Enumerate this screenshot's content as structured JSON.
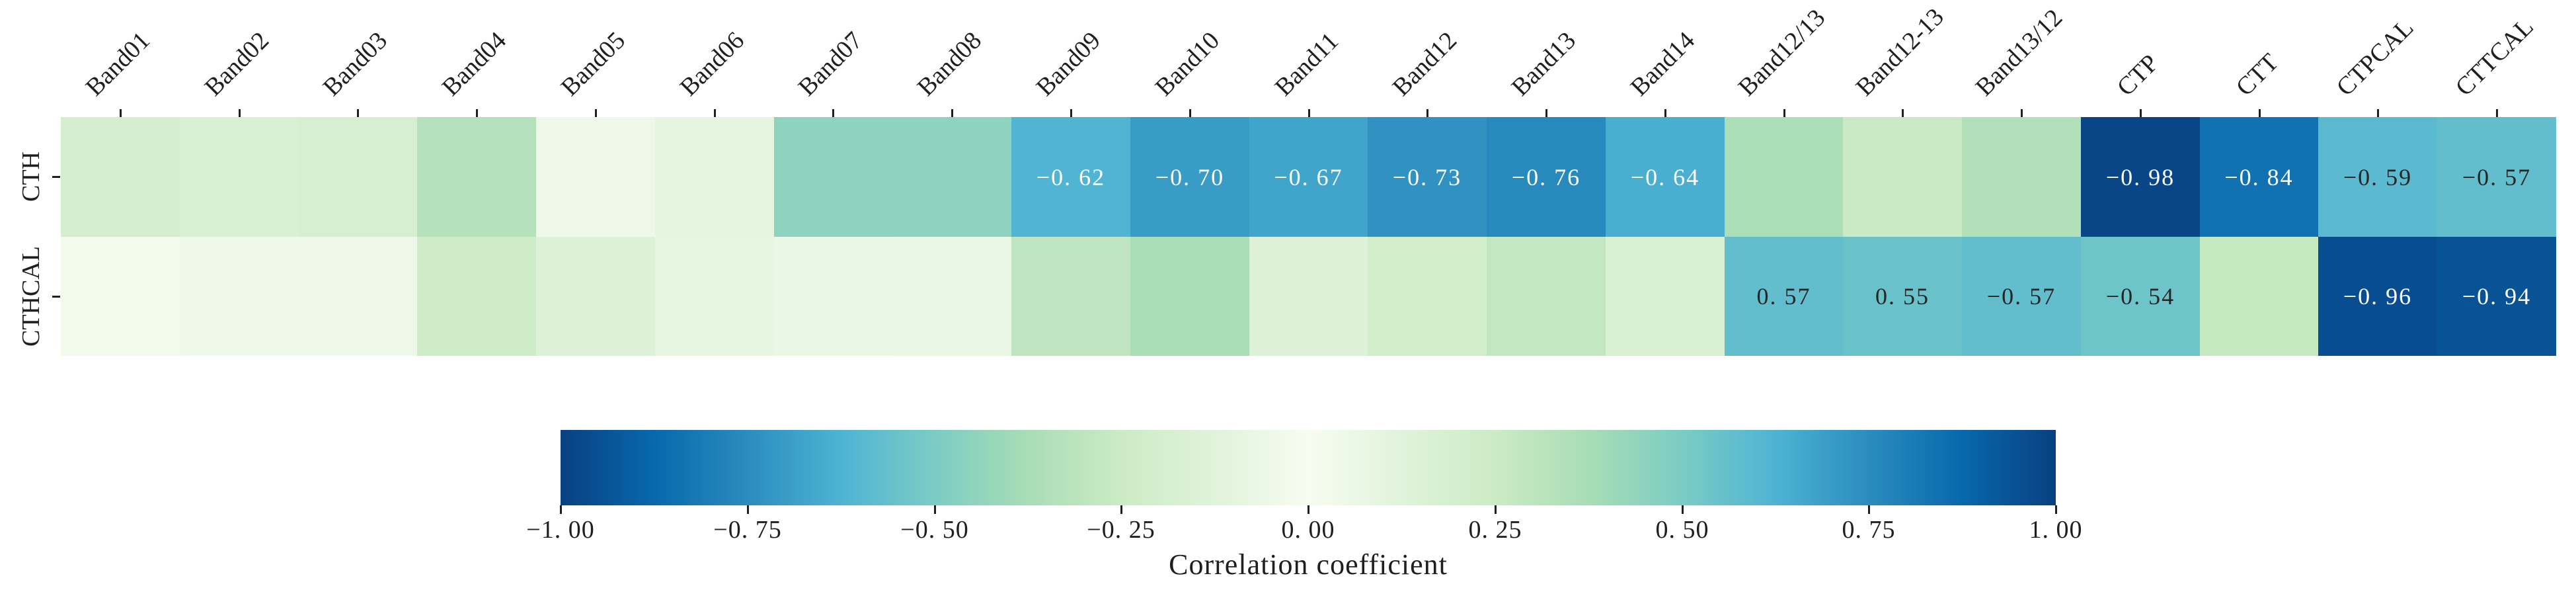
{
  "figure": {
    "background": "#ffffff",
    "text_color": "#1f1f1f"
  },
  "chart_data": {
    "type": "heatmap",
    "rows": [
      "CTH",
      "CTHCAL"
    ],
    "columns": [
      "Band01",
      "Band02",
      "Band03",
      "Band04",
      "Band05",
      "Band06",
      "Band07",
      "Band08",
      "Band09",
      "Band10",
      "Band11",
      "Band12",
      "Band13",
      "Band14",
      "Band12/13",
      "Band12-13",
      "Band13/12",
      "CTP",
      "CTT",
      "CTPCAL",
      "CTTCAL"
    ],
    "series": [
      {
        "name": "CTH",
        "values": [
          0.2,
          0.17,
          0.19,
          0.33,
          0.05,
          0.1,
          0.45,
          0.45,
          -0.62,
          -0.7,
          -0.67,
          -0.73,
          -0.76,
          -0.64,
          0.36,
          0.26,
          0.34,
          -0.98,
          -0.84,
          -0.59,
          -0.57
        ]
      },
      {
        "name": "CTHCAL",
        "values": [
          0.03,
          0.05,
          0.05,
          0.23,
          0.15,
          0.09,
          0.07,
          0.08,
          0.3,
          0.37,
          0.15,
          0.22,
          0.28,
          0.17,
          0.57,
          0.55,
          -0.57,
          -0.54,
          0.27,
          -0.96,
          -0.94
        ]
      }
    ],
    "unannotated_values_estimated_from_color": true,
    "annotations": [
      [
        "",
        "",
        "",
        "",
        "",
        "",
        "",
        "",
        "−0. 62",
        "−0. 70",
        "−0. 67",
        "−0. 73",
        "−0. 76",
        "−0. 64",
        "",
        "",
        "",
        "−0. 98",
        "−0. 84",
        "−0. 59",
        "−0. 57"
      ],
      [
        "",
        "",
        "",
        "",
        "",
        "",
        "",
        "",
        "",
        "",
        "",
        "",
        "",
        "",
        "0. 57",
        "0. 55",
        "−0. 57",
        "−0. 54",
        "",
        "−0. 96",
        "−0. 94"
      ]
    ],
    "annotation_colors": {
      "on_dark": "#ffffff",
      "on_light": "#262626"
    },
    "colormap": {
      "name": "GnBu applied to absolute correlation",
      "anchors": [
        "#f7fcf0",
        "#e0f3db",
        "#ccebc5",
        "#a8ddb5",
        "#7bccc4",
        "#4eb3d3",
        "#2b8cbe",
        "#0868ac",
        "#084081"
      ]
    },
    "colorbar": {
      "label": "Correlation coefficient",
      "min": -1,
      "max": 1,
      "tick_values": [
        -1.0,
        -0.75,
        -0.5,
        -0.25,
        0.0,
        0.25,
        0.5,
        0.75,
        1.0
      ],
      "tick_labels": [
        "−1. 00",
        "−0. 75",
        "−0. 50",
        "−0. 25",
        "0. 00",
        "0. 25",
        "0. 50",
        "0. 75",
        "1. 00"
      ],
      "orientation": "horizontal"
    },
    "layout_hints": {
      "x_axis_position": "top",
      "x_tick_rotation_deg": 45,
      "grid_lines": false,
      "legend": false
    }
  }
}
